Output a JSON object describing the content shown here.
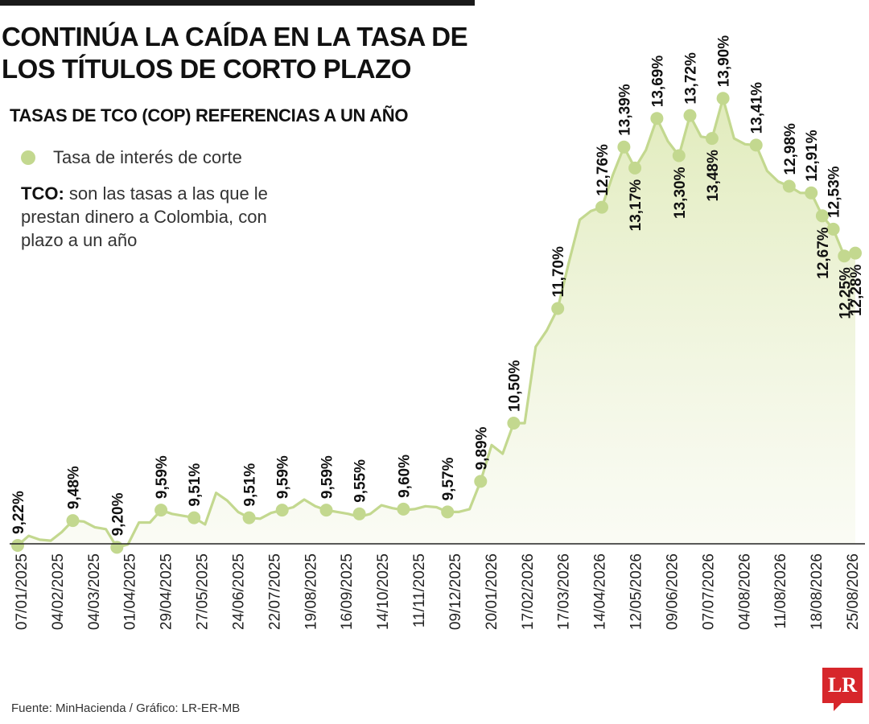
{
  "header": {
    "title": "CONTINÚA LA CAÍDA EN LA TASA DE LOS TÍTULOS DE CORTO PLAZO",
    "subtitle": "TASAS DE TCO (COP) REFERENCIAS A UN AÑO"
  },
  "legend": {
    "label": "Tasa de interés de corte"
  },
  "note": {
    "term": "TCO:",
    "text": " son las tasas a las que le prestan dinero a Colombia, con plazo a un año"
  },
  "footer": {
    "source": "Fuente: MinHacienda / Gráfico: LR-ER-MB"
  },
  "logo": {
    "text": "LR"
  },
  "colors": {
    "line": "#c3d88f",
    "marker": "#c3d88f",
    "area_top": "#dfeab8",
    "axis": "#222222",
    "logo": "#d7262b"
  },
  "chart_data": {
    "type": "line",
    "title": "TASAS DE TCO (COP) REFERENCIAS A UN AÑO",
    "xlabel": "",
    "ylabel": "",
    "ylim": [
      8.9,
      14.5
    ],
    "x_ticks": [
      "07/01/2025",
      "04/02/2025",
      "04/03/2025",
      "01/04/2025",
      "29/04/2025",
      "27/05/2025",
      "24/06/2025",
      "22/07/2025",
      "19/08/2025",
      "16/09/2025",
      "14/10/2025",
      "11/11/2025",
      "09/12/2025",
      "20/01/2026",
      "17/02/2026",
      "17/03/2026",
      "14/04/2026",
      "12/05/2026",
      "09/06/2026",
      "07/07/2026",
      "04/08/2026",
      "11/08/2026",
      "18/08/2026",
      "25/08/2026"
    ],
    "series": [
      {
        "name": "Tasa de interés de corte",
        "values": [
          9.22,
          9.32,
          9.28,
          9.27,
          9.36,
          9.48,
          9.47,
          9.41,
          9.39,
          9.2,
          9.23,
          9.46,
          9.46,
          9.59,
          9.55,
          9.53,
          9.51,
          9.44,
          9.77,
          9.69,
          9.57,
          9.51,
          9.5,
          9.56,
          9.59,
          9.62,
          9.7,
          9.63,
          9.59,
          9.57,
          9.55,
          9.52,
          9.55,
          9.64,
          9.61,
          9.59,
          9.6,
          9.63,
          9.62,
          9.57,
          9.57,
          9.6,
          9.89,
          10.27,
          10.18,
          10.5,
          10.5,
          11.3,
          11.47,
          11.7,
          12.18,
          12.63,
          12.72,
          12.76,
          13.1,
          13.39,
          13.17,
          13.36,
          13.69,
          13.45,
          13.3,
          13.72,
          13.5,
          13.48,
          13.9,
          13.48,
          13.42,
          13.41,
          13.14,
          13.03,
          12.98,
          12.91,
          12.91,
          12.67,
          12.53,
          12.25,
          12.28
        ]
      }
    ],
    "markers": [
      {
        "label": "9,22%",
        "value": 9.22
      },
      {
        "label": "9,48%",
        "value": 9.48
      },
      {
        "label": "9,20%",
        "value": 9.2
      },
      {
        "label": "9,59%",
        "value": 9.59
      },
      {
        "label": "9,51%",
        "value": 9.51
      },
      {
        "label": "9,51%",
        "value": 9.51
      },
      {
        "label": "9,59%",
        "value": 9.59
      },
      {
        "label": "9,59%",
        "value": 9.59
      },
      {
        "label": "9,55%",
        "value": 9.55
      },
      {
        "label": "9,60%",
        "value": 9.6
      },
      {
        "label": "9,57%",
        "value": 9.57
      },
      {
        "label": "9,89%",
        "value": 9.89
      },
      {
        "label": "10,50%",
        "value": 10.5
      },
      {
        "label": "11,70%",
        "value": 11.7
      },
      {
        "label": "12,76%",
        "value": 12.76
      },
      {
        "label": "13,39%",
        "value": 13.39
      },
      {
        "label": "13,17%",
        "value": 13.17
      },
      {
        "label": "13,69%",
        "value": 13.69
      },
      {
        "label": "13,30%",
        "value": 13.3
      },
      {
        "label": "13,72%",
        "value": 13.72
      },
      {
        "label": "13,48%",
        "value": 13.48
      },
      {
        "label": "13,90%",
        "value": 13.9
      },
      {
        "label": "13,41%",
        "value": 13.41
      },
      {
        "label": "12,98%",
        "value": 12.98
      },
      {
        "label": "12,91%",
        "value": 12.91
      },
      {
        "label": "12,67%",
        "value": 12.67
      },
      {
        "label": "12,53%",
        "value": 12.53
      },
      {
        "label": "12,25%",
        "value": 12.25
      },
      {
        "label": "12,28%",
        "value": 12.28
      }
    ],
    "grid": false,
    "legend_position": "top-left"
  }
}
